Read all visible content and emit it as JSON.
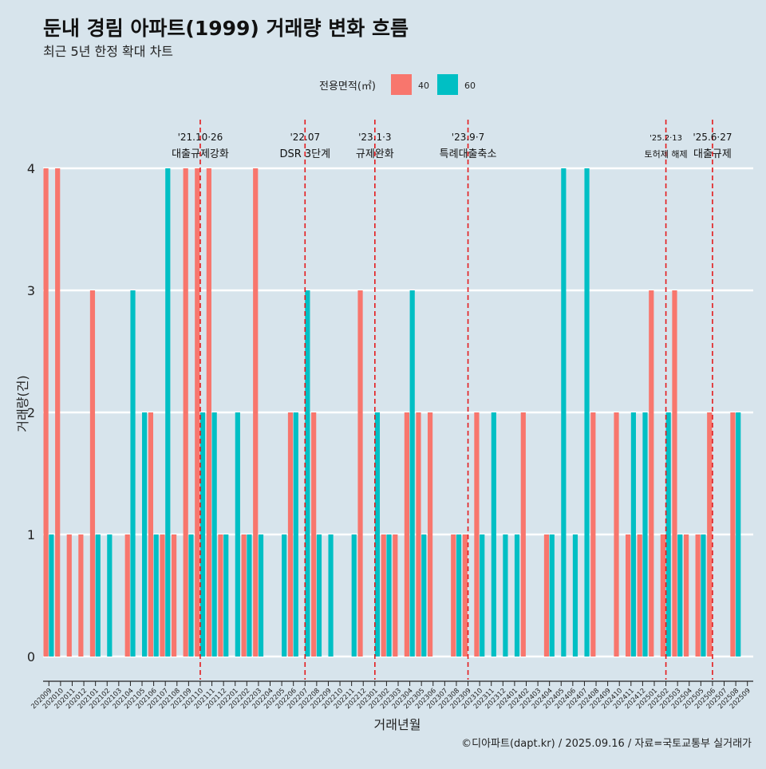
{
  "chart_data": {
    "type": "bar",
    "title": "둔내 경림 아파트(1999) 거래량 변화 흐름",
    "subtitle": "최근 5년 한정 확대 차트",
    "xlabel": "거래년월",
    "ylabel": "거래량(건)",
    "ylim": [
      0,
      4
    ],
    "yticks": [
      "0",
      "1",
      "2",
      "3",
      "4"
    ],
    "legend": {
      "title": "전용면적(㎡)",
      "position": "top",
      "items": [
        {
          "label": "40",
          "color": "#f8766d"
        },
        {
          "label": "60",
          "color": "#00bfc4"
        }
      ]
    },
    "categories": [
      "202009",
      "202010",
      "202011",
      "202012",
      "202101",
      "202102",
      "202103",
      "202104",
      "202105",
      "202106",
      "202107",
      "202108",
      "202109",
      "202110",
      "202111",
      "202112",
      "202201",
      "202202",
      "202203",
      "202204",
      "202205",
      "202206",
      "202207",
      "202208",
      "202209",
      "202210",
      "202211",
      "202212",
      "202301",
      "202302",
      "202303",
      "202304",
      "202305",
      "202306",
      "202307",
      "202308",
      "202309",
      "202310",
      "202311",
      "202312",
      "202401",
      "202402",
      "202403",
      "202404",
      "202405",
      "202406",
      "202407",
      "202408",
      "202409",
      "202410",
      "202411",
      "202412",
      "202501",
      "202502",
      "202503",
      "202504",
      "202505",
      "202506",
      "202507",
      "202508",
      "202509"
    ],
    "series": [
      {
        "name": "40",
        "color": "#f8766d",
        "values": [
          4,
          4,
          1,
          1,
          3,
          0,
          0,
          1,
          0,
          2,
          1,
          1,
          4,
          4,
          4,
          1,
          0,
          1,
          4,
          0,
          0,
          2,
          0,
          2,
          0,
          0,
          0,
          3,
          0,
          1,
          1,
          2,
          2,
          2,
          0,
          1,
          1,
          2,
          0,
          0,
          0,
          2,
          0,
          1,
          0,
          0,
          0,
          2,
          0,
          2,
          1,
          1,
          3,
          1,
          3,
          1,
          1,
          2,
          0,
          2,
          0
        ]
      },
      {
        "name": "60",
        "color": "#00bfc4",
        "values": [
          1,
          0,
          0,
          0,
          1,
          1,
          0,
          3,
          2,
          1,
          4,
          0,
          1,
          2,
          2,
          1,
          2,
          1,
          1,
          0,
          1,
          2,
          3,
          1,
          1,
          0,
          1,
          0,
          2,
          1,
          0,
          3,
          1,
          0,
          0,
          1,
          0,
          1,
          2,
          1,
          1,
          0,
          0,
          1,
          4,
          1,
          4,
          0,
          0,
          0,
          2,
          2,
          0,
          2,
          1,
          0,
          1,
          0,
          0,
          2,
          0
        ]
      }
    ],
    "annotations": [
      {
        "x": "202110",
        "date": "'21.10·26",
        "text": "대출규제강화"
      },
      {
        "x": "202207",
        "date": "'22.07",
        "text": "DSR 3단계"
      },
      {
        "x": "202301",
        "date": "'23.1·3",
        "text": "규제완화"
      },
      {
        "x": "202309",
        "date": "'23.9·7",
        "text": "특례대출축소"
      },
      {
        "x": "202502",
        "date": "'25.2·13",
        "text": "토허제 해제"
      },
      {
        "x": "202506",
        "date": "'25.6·27",
        "text": "대출규제"
      }
    ],
    "annotation_line_color": "#e41a1c"
  },
  "caption": "©디아파트(dapt.kr) / 2025.09.16 / 자료=국토교통부 실거래가"
}
